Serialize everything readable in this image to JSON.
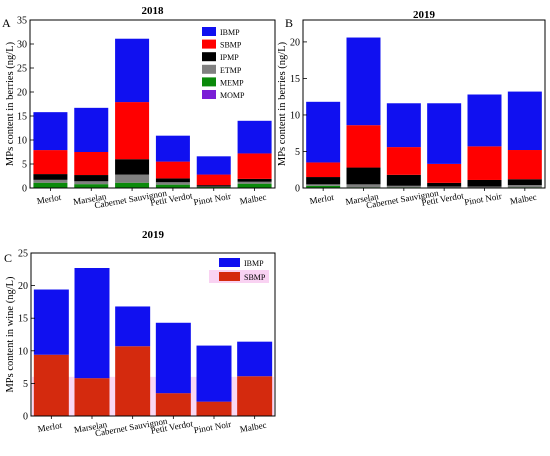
{
  "chart_data": [
    {
      "panel": "A",
      "title": "2018",
      "type": "bar",
      "stacked": true,
      "ylabel": "MPs content in berries (ng/L)",
      "xlabel": "",
      "ylim": [
        0,
        35
      ],
      "yticks": [
        0,
        5,
        10,
        15,
        20,
        25,
        30,
        35
      ],
      "categories": [
        "Merlot",
        "Marselan",
        "Cabernet Sauvignon",
        "Petit Verdot",
        "Pinot Noir",
        "Malbec"
      ],
      "legend_position": "top-right",
      "series": [
        {
          "name": "IBMP",
          "color": "#1010f0",
          "values": [
            7.9,
            9.2,
            13.2,
            5.4,
            3.8,
            6.8
          ]
        },
        {
          "name": "SBMP",
          "color": "#ff0000",
          "values": [
            5.0,
            4.8,
            11.9,
            3.5,
            2.2,
            5.3
          ]
        },
        {
          "name": "IPMP",
          "color": "#000000",
          "values": [
            1.2,
            1.3,
            3.2,
            0.8,
            0.3,
            0.6
          ]
        },
        {
          "name": "ETMP",
          "color": "#808080",
          "values": [
            0.6,
            0.6,
            1.7,
            0.5,
            0.1,
            0.4
          ]
        },
        {
          "name": "MEMP",
          "color": "#0a8a0a",
          "values": [
            1.1,
            0.8,
            1.1,
            0.7,
            0.2,
            0.9
          ]
        },
        {
          "name": "MOMP",
          "color": "#7a1fd6",
          "values": [
            0.0,
            0.0,
            0.0,
            0.0,
            0.0,
            0.0
          ]
        }
      ]
    },
    {
      "panel": "B",
      "title": "2019",
      "type": "bar",
      "stacked": true,
      "ylabel": "MPs content in berries (ng/L)",
      "xlabel": "",
      "ylim": [
        0,
        23
      ],
      "yticks": [
        0,
        5,
        10,
        15,
        20
      ],
      "categories": [
        "Merlot",
        "Marselan",
        "Cabernet Sauvignon",
        "Petit Verdot",
        "Pinot Noir",
        "Malbec"
      ],
      "series": [
        {
          "name": "IBMP",
          "color": "#1010f0",
          "values": [
            8.3,
            12.0,
            6.0,
            8.3,
            7.1,
            8.0
          ]
        },
        {
          "name": "SBMP",
          "color": "#ff0000",
          "values": [
            2.0,
            5.8,
            3.8,
            2.6,
            4.6,
            4.0
          ]
        },
        {
          "name": "IPMP",
          "color": "#000000",
          "values": [
            1.0,
            2.3,
            1.5,
            0.5,
            0.9,
            0.8
          ]
        },
        {
          "name": "ETMP",
          "color": "#808080",
          "values": [
            0.2,
            0.4,
            0.2,
            0.2,
            0.2,
            0.3
          ]
        },
        {
          "name": "MEMP",
          "color": "#0a8a0a",
          "values": [
            0.3,
            0.1,
            0.1,
            0.0,
            0.0,
            0.1
          ]
        }
      ]
    },
    {
      "panel": "C",
      "title": "2019",
      "type": "bar",
      "stacked": true,
      "ylabel": "MPs content in wine (ng/L)",
      "xlabel": "",
      "ylim": [
        0,
        25
      ],
      "yticks": [
        0,
        5,
        10,
        15,
        20,
        25
      ],
      "categories": [
        "Merlot",
        "Marselan",
        "Cabernet Sauvignon",
        "Petit Verdot",
        "Pinot Noir",
        "Malbec"
      ],
      "legend_position": "top-right",
      "series": [
        {
          "name": "IBMP",
          "color": "#1010f0",
          "values": [
            10.0,
            16.9,
            6.1,
            10.8,
            8.6,
            5.3
          ]
        },
        {
          "name": "SBMP",
          "color": "#d42a0e",
          "values": [
            9.4,
            5.8,
            10.7,
            3.5,
            2.2,
            6.1
          ]
        }
      ]
    }
  ]
}
